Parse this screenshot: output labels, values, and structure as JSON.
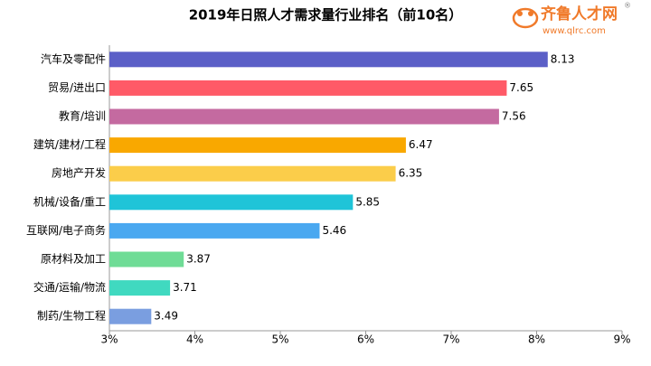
{
  "chart_data": {
    "type": "bar",
    "orientation": "horizontal",
    "title": "2019年日照人才需求量行业排名（前10名）",
    "categories": [
      "汽车及零配件",
      "贸易/进出口",
      "教育/培训",
      "建筑/建材/工程",
      "房地产开发",
      "机械/设备/重工",
      "互联网/电子商务",
      "原材料及加工",
      "交通/运输/物流",
      "制药/生物工程"
    ],
    "values": [
      8.13,
      7.65,
      7.56,
      6.47,
      6.35,
      5.85,
      5.46,
      3.87,
      3.71,
      3.49
    ],
    "colors": [
      "#5b5fc7",
      "#ff5a67",
      "#c46aa0",
      "#f9a800",
      "#fbcd4a",
      "#1fc4d8",
      "#4aa8f0",
      "#6fdc96",
      "#40d9c0",
      "#7a9ee0"
    ],
    "xlim": [
      3,
      9
    ],
    "xticks": [
      {
        "value": 3,
        "label": "3%"
      },
      {
        "value": 4,
        "label": "4%"
      },
      {
        "value": 5,
        "label": "5%"
      },
      {
        "value": 6,
        "label": "6%"
      },
      {
        "value": 7,
        "label": "7%"
      },
      {
        "value": 8,
        "label": "8%"
      },
      {
        "value": 9,
        "label": "9%"
      }
    ],
    "grid": false
  },
  "logo": {
    "name": "齐鲁人才网",
    "mark": "®",
    "url": "www.qlrc.com"
  }
}
